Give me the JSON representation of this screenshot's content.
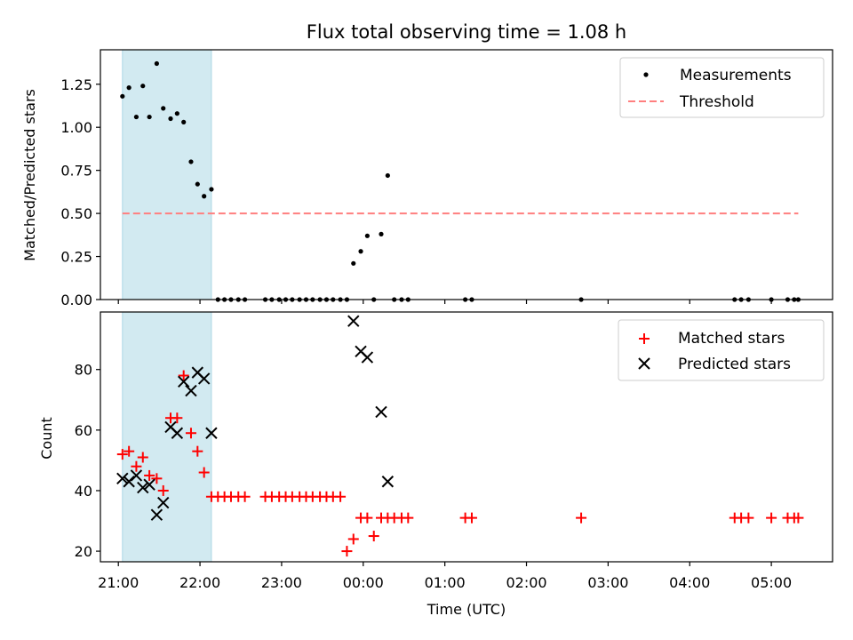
{
  "title": "Flux total observing time = 1.08 h",
  "colors": {
    "shade": "#add8e6",
    "threshold": "#ff7f7f",
    "measurement": "#000000",
    "matched": "#ff0000",
    "predicted": "#000000"
  },
  "chart_data": [
    {
      "type": "scatter",
      "position": "top",
      "title": "Flux total observing time = 1.08 h",
      "ylabel": "Matched/Predicted stars",
      "xlabel": "",
      "x_unit": "hours UTC (continuing past 24 into next day)",
      "xlim": [
        20.78,
        29.75
      ],
      "ylim": [
        0,
        1.45
      ],
      "yticks": [
        0.0,
        0.25,
        0.5,
        0.75,
        1.0,
        1.25
      ],
      "ytick_labels": [
        "0.00",
        "0.25",
        "0.50",
        "0.75",
        "1.00",
        "1.25"
      ],
      "shaded_span": [
        21.05,
        22.14
      ],
      "legend_position": "upper right",
      "legend": [
        {
          "label": "Measurements",
          "marker": "dot"
        },
        {
          "label": "Threshold",
          "marker": "dashed-line"
        }
      ],
      "threshold": {
        "value": 0.5,
        "x_range": [
          21.05,
          29.33
        ]
      },
      "series": [
        {
          "name": "Measurements",
          "x": [
            21.05,
            21.13,
            21.22,
            21.3,
            21.38,
            21.47,
            21.55,
            21.64,
            21.72,
            21.8,
            21.89,
            21.97,
            22.05,
            22.14,
            22.22,
            22.3,
            22.38,
            22.47,
            22.55,
            22.8,
            22.88,
            22.97,
            23.05,
            23.13,
            23.22,
            23.3,
            23.38,
            23.47,
            23.55,
            23.63,
            23.72,
            23.8,
            23.88,
            23.97,
            24.05,
            24.13,
            24.22,
            24.3,
            24.38,
            24.47,
            24.55,
            25.25,
            25.33,
            26.67,
            28.55,
            28.63,
            28.72,
            29.0,
            29.2,
            29.28,
            29.33
          ],
          "values": [
            1.18,
            1.23,
            1.06,
            1.24,
            1.06,
            1.37,
            1.11,
            1.05,
            1.08,
            1.03,
            0.8,
            0.67,
            0.6,
            0.64,
            0.0,
            0.0,
            0.0,
            0.0,
            0.0,
            0.0,
            0.0,
            0.0,
            0.0,
            0.0,
            0.0,
            0.0,
            0.0,
            0.0,
            0.0,
            0.0,
            0.0,
            0.0,
            0.21,
            0.28,
            0.37,
            0.0,
            0.38,
            0.72,
            0.0,
            0.0,
            0.0,
            0.0,
            0.0,
            0.0,
            0.0,
            0.0,
            0.0,
            0.0,
            0.0,
            0.0,
            0.0
          ]
        }
      ]
    },
    {
      "type": "scatter",
      "position": "bottom",
      "title": "",
      "ylabel": "Count",
      "xlabel": "Time (UTC)",
      "x_unit": "hours UTC (continuing past 24 into next day)",
      "xlim": [
        20.78,
        29.75
      ],
      "ylim": [
        16.5,
        99
      ],
      "yticks": [
        20,
        40,
        60,
        80
      ],
      "ytick_labels": [
        "20",
        "40",
        "60",
        "80"
      ],
      "xticks": [
        21,
        22,
        23,
        24,
        25,
        26,
        27,
        28,
        29
      ],
      "xtick_labels": [
        "21:00",
        "22:00",
        "23:00",
        "00:00",
        "01:00",
        "02:00",
        "03:00",
        "04:00",
        "05:00"
      ],
      "shaded_span": [
        21.05,
        22.14
      ],
      "legend_position": "upper right",
      "legend": [
        {
          "label": "Matched stars",
          "marker": "plus"
        },
        {
          "label": "Predicted stars",
          "marker": "x"
        }
      ],
      "series": [
        {
          "name": "Matched stars",
          "x": [
            21.05,
            21.13,
            21.22,
            21.3,
            21.38,
            21.47,
            21.55,
            21.64,
            21.72,
            21.8,
            21.89,
            21.97,
            22.05,
            22.14,
            22.22,
            22.3,
            22.38,
            22.47,
            22.55,
            22.8,
            22.88,
            22.97,
            23.05,
            23.13,
            23.22,
            23.3,
            23.38,
            23.47,
            23.55,
            23.63,
            23.72,
            23.8,
            23.88,
            23.97,
            24.05,
            24.13,
            24.22,
            24.3,
            24.38,
            24.47,
            24.55,
            25.25,
            25.33,
            26.67,
            28.55,
            28.63,
            28.72,
            29.0,
            29.2,
            29.28,
            29.33
          ],
          "values": [
            52,
            53,
            48,
            51,
            45,
            44,
            40,
            64,
            64,
            78,
            59,
            53,
            46,
            38,
            38,
            38,
            38,
            38,
            38,
            38,
            38,
            38,
            38,
            38,
            38,
            38,
            38,
            38,
            38,
            38,
            38,
            20,
            24,
            31,
            31,
            25,
            31,
            31,
            31,
            31,
            31,
            31,
            31,
            31,
            31,
            31,
            31,
            31,
            31,
            31,
            31
          ]
        },
        {
          "name": "Predicted stars",
          "x": [
            21.05,
            21.13,
            21.22,
            21.3,
            21.38,
            21.47,
            21.55,
            21.64,
            21.72,
            21.8,
            21.89,
            21.97,
            22.05,
            22.14,
            23.88,
            23.97,
            24.05,
            24.22,
            24.3
          ],
          "values": [
            44,
            43,
            45,
            41,
            42,
            32,
            36,
            61,
            59,
            76,
            73,
            79,
            77,
            59,
            96,
            86,
            84,
            66,
            43
          ]
        }
      ]
    }
  ]
}
